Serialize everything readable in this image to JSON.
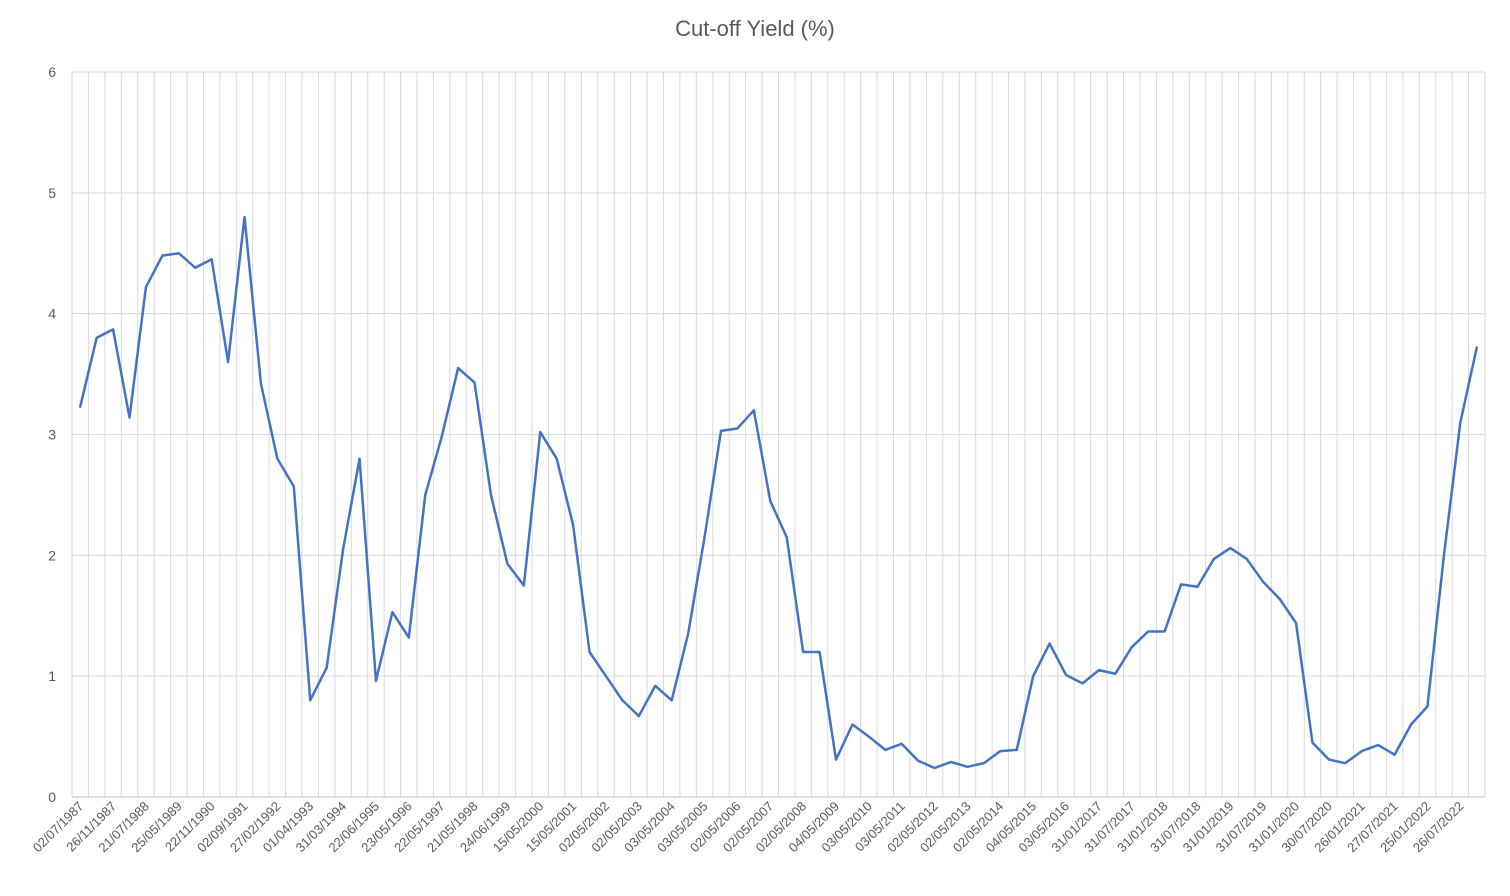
{
  "chart_data": {
    "type": "line",
    "title": "Cut-off Yield (%)",
    "xlabel": "",
    "ylabel": "",
    "ylim": [
      0,
      6
    ],
    "yticks": [
      0,
      1,
      2,
      3,
      4,
      5,
      6
    ],
    "grid": true,
    "legend": "none",
    "line_color": "#4472C4",
    "x_tick_labels": [
      "02/07/1987",
      "26/11/1987",
      "21/07/1988",
      "25/05/1989",
      "22/11/1990",
      "02/09/1991",
      "27/02/1992",
      "01/04/1993",
      "31/03/1994",
      "22/06/1995",
      "23/05/1996",
      "22/05/1997",
      "21/05/1998",
      "24/06/1999",
      "15/05/2000",
      "15/05/2001",
      "02/05/2002",
      "02/05/2003",
      "03/05/2004",
      "03/05/2005",
      "02/05/2006",
      "02/05/2007",
      "02/05/2008",
      "04/05/2009",
      "03/05/2010",
      "03/05/2011",
      "02/05/2012",
      "02/05/2013",
      "02/05/2014",
      "04/05/2015",
      "03/05/2016",
      "31/01/2017",
      "31/07/2017",
      "31/01/2018",
      "31/07/2018",
      "31/01/2019",
      "31/07/2019",
      "31/01/2020",
      "30/07/2020",
      "26/01/2021",
      "27/07/2021",
      "25/01/2022",
      "26/07/2022"
    ],
    "series": [
      {
        "values": [
          3.23,
          3.8,
          3.87,
          3.14,
          4.22,
          4.48,
          4.5,
          4.38,
          4.45,
          3.6,
          4.8,
          3.42,
          2.8,
          2.57,
          0.8,
          1.07,
          2.05,
          2.8,
          0.96,
          1.53,
          1.32,
          2.5,
          2.98,
          3.55,
          3.43,
          2.5,
          1.93,
          1.75,
          3.02,
          2.8,
          2.25,
          1.2,
          1.0,
          0.8,
          0.67,
          0.92,
          0.8,
          1.35,
          2.15,
          3.03,
          3.05,
          3.2,
          2.45,
          2.15,
          1.2,
          1.2,
          0.31,
          0.6,
          0.5,
          0.39,
          0.44,
          0.3,
          0.24,
          0.29,
          0.25,
          0.28,
          0.38,
          0.39,
          1.0,
          1.27,
          1.01,
          0.94,
          1.05,
          1.02,
          1.24,
          1.37,
          1.37,
          1.76,
          1.74,
          1.97,
          2.06,
          1.97,
          1.78,
          1.64,
          1.44,
          0.45,
          0.31,
          0.28,
          0.38,
          0.43,
          0.35,
          0.6,
          0.75,
          2.0,
          3.1,
          3.72
        ]
      }
    ]
  }
}
